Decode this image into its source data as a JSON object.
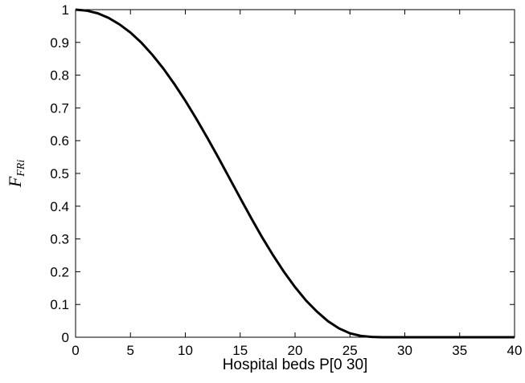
{
  "chart_data": {
    "type": "line",
    "title": "",
    "xlabel": "Hospital beds   P[0 30]",
    "ylabel": {
      "main": "F",
      "sub": "FRi"
    },
    "xlim": [
      0,
      40
    ],
    "ylim": [
      0,
      1
    ],
    "xticks": [
      "0",
      "5",
      "10",
      "15",
      "20",
      "25",
      "30",
      "35",
      "40"
    ],
    "yticks": [
      "0",
      "0.1",
      "0.2",
      "0.3",
      "0.4",
      "0.5",
      "0.6",
      "0.7",
      "0.8",
      "0.9",
      "1"
    ],
    "grid": false,
    "series": [
      {
        "color": "#000000",
        "x": [
          0,
          1,
          2,
          3,
          4,
          5,
          6,
          7,
          8,
          9,
          10,
          11,
          12,
          13,
          14,
          15,
          16,
          17,
          18,
          19,
          20,
          21,
          22,
          23,
          24,
          25,
          26,
          27,
          28,
          29,
          30,
          31,
          32,
          33,
          34,
          35,
          36,
          37,
          38,
          39,
          40
        ],
        "y": [
          1.0,
          0.997,
          0.989,
          0.975,
          0.955,
          0.93,
          0.899,
          0.862,
          0.82,
          0.773,
          0.722,
          0.667,
          0.609,
          0.549,
          0.487,
          0.425,
          0.364,
          0.305,
          0.25,
          0.199,
          0.153,
          0.112,
          0.078,
          0.049,
          0.027,
          0.012,
          0.004,
          0.001,
          0.0,
          0.0,
          0.0,
          0.0,
          0.0,
          0.0,
          0.0,
          0.0,
          0.0,
          0.0,
          0.0,
          0.0,
          0.0
        ]
      }
    ]
  }
}
